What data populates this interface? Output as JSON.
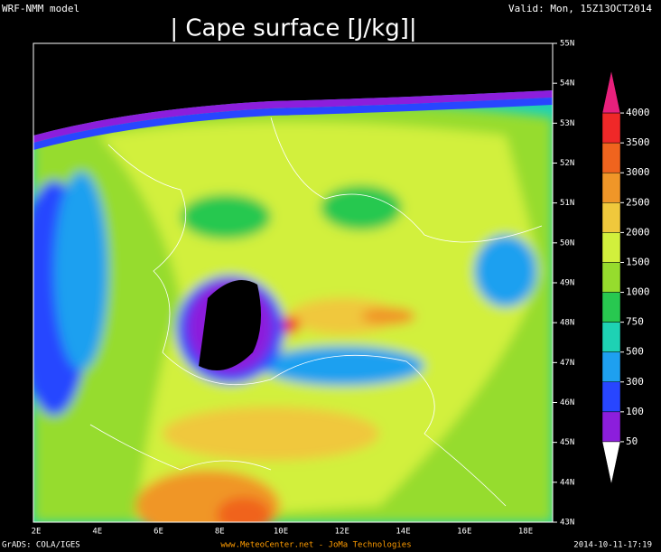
{
  "header": {
    "model": "WRF-NMM model",
    "title": "| Cape surface [J/kg]|",
    "valid": "Valid: Mon, 15Z13OCT2014"
  },
  "lat_labels": [
    "55N",
    "54N",
    "53N",
    "52N",
    "51N",
    "50N",
    "49N",
    "48N",
    "47N",
    "46N",
    "45N",
    "44N",
    "43N"
  ],
  "lon_labels": [
    "2E",
    "4E",
    "6E",
    "8E",
    "10E",
    "12E",
    "14E",
    "16E",
    "18E"
  ],
  "colorbar": {
    "labels": [
      "4000",
      "3500",
      "3000",
      "2500",
      "2000",
      "1500",
      "1000",
      "750",
      "500",
      "300",
      "100",
      "50"
    ],
    "colors": [
      "#e8207c",
      "#f02828",
      "#f0641e",
      "#f09628",
      "#f0c83c",
      "#d2f03c",
      "#96dc2d",
      "#28c850",
      "#1ed2b4",
      "#1ea0f0",
      "#2846ff",
      "#8c1edc",
      "#ffffff"
    ]
  },
  "footer": {
    "left": "GrADS: COLA/IGES",
    "center": "www.MeteoCenter.net  -  JoMa Technologies",
    "right": "2014-10-11-17:19"
  }
}
